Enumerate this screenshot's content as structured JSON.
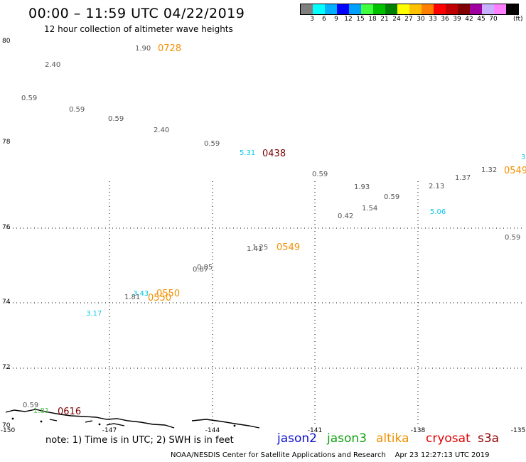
{
  "header": {
    "title": "00:00 – 11:59 UTC 04/22/2019",
    "subtitle": "12 hour collection of altimeter wave heights"
  },
  "colorbar": {
    "colors": [
      "#7f7f7f",
      "#00ffff",
      "#00b0ff",
      "#0000ff",
      "#00a0ff",
      "#40ff40",
      "#00c000",
      "#008000",
      "#ffff00",
      "#ffc000",
      "#ff8000",
      "#ff0000",
      "#c00000",
      "#800000",
      "#a000a0",
      "#c8b0ff",
      "#ff80ff",
      "#000000"
    ],
    "labels": [
      "3",
      "6",
      "9",
      "12",
      "15",
      "18",
      "21",
      "24",
      "27",
      "30",
      "33",
      "36",
      "39",
      "42",
      "45",
      "70"
    ],
    "unit": "(ft)"
  },
  "axes": {
    "lat_labels": [
      "80",
      "78",
      "76",
      "74",
      "72",
      "70"
    ],
    "lon_labels": [
      "-150",
      "-147",
      "-144",
      "-141",
      "-138",
      "-135"
    ]
  },
  "wave_heights": [
    {
      "text": "1.90",
      "color": "gray"
    },
    {
      "text": "2.40",
      "color": "gray"
    },
    {
      "text": "0.59",
      "color": "gray"
    },
    {
      "text": "0.59",
      "color": "gray"
    },
    {
      "text": "0.59",
      "color": "gray"
    },
    {
      "text": "2.40",
      "color": "gray"
    },
    {
      "text": "0.59",
      "color": "gray"
    },
    {
      "text": "5.31",
      "color": "cyan"
    },
    {
      "text": "0.59",
      "color": "gray"
    },
    {
      "text": "1.93",
      "color": "gray"
    },
    {
      "text": "0.59",
      "color": "gray"
    },
    {
      "text": "1.54",
      "color": "gray"
    },
    {
      "text": "0.42",
      "color": "gray"
    },
    {
      "text": "2.13",
      "color": "gray"
    },
    {
      "text": "1.37",
      "color": "gray"
    },
    {
      "text": "1.32",
      "color": "gray"
    },
    {
      "text": "5.06",
      "color": "cyan"
    },
    {
      "text": "0.59",
      "color": "gray"
    },
    {
      "text": "3",
      "color": "cyan"
    },
    {
      "text": "1.25",
      "color": "gray"
    },
    {
      "text": "1.41",
      "color": "gray"
    },
    {
      "text": "0.85",
      "color": "gray"
    },
    {
      "text": "0.87",
      "color": "gray"
    },
    {
      "text": "3.43",
      "color": "cyan"
    },
    {
      "text": "1.81",
      "color": "gray"
    },
    {
      "text": "3.17",
      "color": "cyan"
    },
    {
      "text": "0.59",
      "color": "gray"
    },
    {
      "text": "1.81",
      "color": "green"
    }
  ],
  "pass_times": [
    {
      "text": "0728",
      "color": "orange"
    },
    {
      "text": "0438",
      "color": "maroon"
    },
    {
      "text": "0549",
      "color": "orange"
    },
    {
      "text": "0549",
      "color": "orange"
    },
    {
      "text": "0550",
      "color": "orange"
    },
    {
      "text": "0550",
      "color": "orange"
    },
    {
      "text": "0616",
      "color": "maroon"
    }
  ],
  "legend": {
    "note": "note: 1) Time is in UTC; 2) SWH is in feet",
    "satellites": [
      {
        "name": "jason2",
        "color": "#1010d0"
      },
      {
        "name": "jason3",
        "color": "#10a010"
      },
      {
        "name": "altika",
        "color": "#f29000"
      },
      {
        "name": "cryosat",
        "color": "#e00000"
      },
      {
        "name": "s3a",
        "color": "#900000"
      }
    ]
  },
  "footer": {
    "credit": "NOAA/NESDIS Center for Satellite Applications and Research",
    "timestamp": "Apr 23 12:27:13 UTC 2019"
  }
}
